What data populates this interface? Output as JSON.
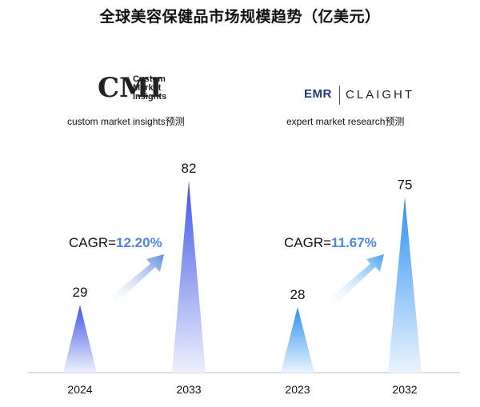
{
  "title": "全球美容保健品市场规模趋势（亿美元）",
  "logos": {
    "left": {
      "mark": "CMI",
      "lines": [
        "Custom",
        "Market",
        "Insights"
      ]
    },
    "right": {
      "mark": "EMR",
      "name": "CLAIGHT"
    }
  },
  "panels": [
    {
      "source": "custom market insights预测",
      "cagr_label": "CAGR=",
      "cagr_value": "12.20%"
    },
    {
      "source": "expert market research预测",
      "cagr_label": "CAGR=",
      "cagr_value": "11.67%"
    }
  ],
  "colors": {
    "left_peak": "#3d55e6",
    "left_base": "#e7e9fb",
    "right_peak": "#2e8ff0",
    "right_base": "#e3f0fd",
    "rate_text": "#4f86e6",
    "axis": "#bdbdbd"
  },
  "chart_data": [
    {
      "type": "bar",
      "categories": [
        "2024",
        "2033"
      ],
      "values": [
        29,
        82
      ],
      "data_labels": [
        "29",
        "82"
      ],
      "cagr": "12.20%"
    },
    {
      "type": "bar",
      "categories": [
        "2023",
        "2032"
      ],
      "values": [
        28,
        75
      ],
      "data_labels": [
        "28",
        "75"
      ],
      "cagr": "11.67%"
    }
  ]
}
